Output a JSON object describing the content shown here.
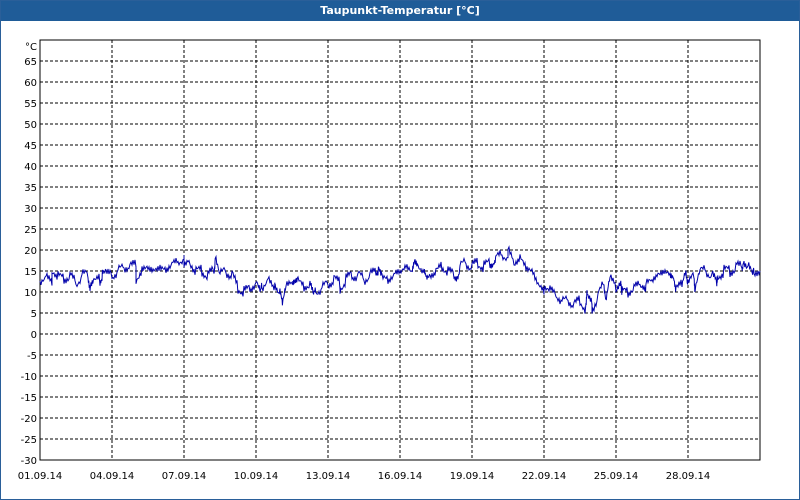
{
  "window": {
    "title": "Taupunkt-Temperatur [°C]"
  },
  "chart_data": {
    "type": "line",
    "title": "Taupunkt-Temperatur [°C]",
    "y_unit_label": "°C",
    "ylim": [
      -30,
      70
    ],
    "y_ticks": [
      65,
      60,
      55,
      50,
      45,
      40,
      35,
      30,
      25,
      20,
      15,
      10,
      5,
      0,
      -5,
      -10,
      -15,
      -20,
      -25,
      -30
    ],
    "x_tick_labels": [
      "01.09.14",
      "04.09.14",
      "07.09.14",
      "10.09.14",
      "13.09.14",
      "16.09.14",
      "19.09.14",
      "22.09.14",
      "25.09.14",
      "28.09.14"
    ],
    "x_tick_day_offsets": [
      0,
      3,
      6,
      9,
      12,
      15,
      18,
      21,
      24,
      27
    ],
    "x_range_days": [
      0,
      30
    ],
    "grid": true,
    "line_color": "#0000aa",
    "series": [
      {
        "x_days": [
          0,
          0.25,
          0.5,
          0.75,
          1,
          1.25,
          1.5,
          1.75,
          2,
          2.25,
          2.5,
          2.75,
          3,
          3.25,
          3.5,
          3.75,
          4,
          4.25,
          4.5,
          4.75,
          5,
          5.25,
          5.5,
          5.75,
          6,
          6.25,
          6.5,
          6.75,
          7,
          7.25,
          7.5,
          7.75,
          8,
          8.25,
          8.5,
          8.75,
          9,
          9.25,
          9.5,
          9.75,
          10,
          10.25,
          10.5,
          10.75,
          11,
          11.25,
          11.5,
          11.75,
          12,
          12.25,
          12.5,
          12.75,
          13,
          13.25,
          13.5,
          13.75,
          14,
          14.25,
          14.5,
          14.75,
          15,
          15.25,
          15.5,
          15.75,
          16,
          16.25,
          16.5,
          16.75,
          17,
          17.25,
          17.5,
          17.75,
          18,
          18.25,
          18.5,
          18.75,
          19,
          19.25,
          19.5,
          19.75,
          20,
          20.25,
          20.5,
          20.75,
          21,
          21.25,
          21.5,
          21.75,
          22,
          22.25,
          22.5,
          22.75,
          23,
          23.25,
          23.5,
          23.75,
          24,
          24.25,
          24.5,
          24.75,
          25,
          25.25,
          25.5,
          25.75,
          26,
          26.25,
          26.5,
          26.75,
          27,
          27.25,
          27.5,
          27.75,
          28,
          28.25,
          28.5,
          28.75,
          29,
          29.25,
          29.5,
          29.75,
          30
        ],
        "values": [
          12,
          14,
          12,
          14,
          13,
          14,
          12,
          14,
          14,
          12,
          13,
          14,
          14,
          15,
          16,
          16,
          17,
          15,
          16,
          15,
          16,
          15,
          17,
          17,
          18,
          17,
          15,
          15,
          14,
          15,
          14,
          15,
          14,
          11,
          10,
          11,
          12,
          11,
          13,
          11,
          10,
          12,
          12,
          13,
          11,
          12,
          10,
          11,
          12,
          13,
          12,
          13,
          14,
          14,
          13,
          14,
          15,
          13,
          13,
          14,
          15,
          16,
          15,
          16,
          15,
          14,
          15,
          16,
          15,
          14,
          16,
          17,
          16,
          17,
          16,
          17,
          18,
          19,
          18,
          17,
          18,
          16,
          15,
          12,
          10,
          11,
          9,
          8,
          8,
          7,
          8,
          6,
          8,
          9,
          12,
          13,
          11,
          10,
          10,
          11,
          12,
          12,
          13,
          14,
          15,
          14,
          11,
          12,
          12,
          14,
          15,
          15,
          14,
          14,
          15,
          15,
          16,
          16,
          16,
          15,
          15
        ],
        "spark_days": [
          0.5,
          2.1,
          2.6,
          4.0,
          6.0,
          7.3,
          9.2,
          9.8,
          10.1,
          10.6,
          11.4,
          12.5,
          14.1,
          15.6,
          16.1,
          17.4,
          18.9,
          19.5,
          21.0,
          22.8,
          23.0,
          23.6,
          24.2,
          25.2,
          26.4,
          26.9,
          27.3,
          28.2,
          29.3,
          29.7
        ],
        "spark_values": [
          15,
          11,
          14,
          13,
          16,
          18,
          10,
          12,
          8,
          13,
          9,
          11,
          15,
          17,
          13,
          14,
          17,
          20,
          11,
          10,
          6,
          8,
          13,
          11,
          14,
          16,
          10,
          12,
          17,
          14
        ]
      }
    ]
  }
}
